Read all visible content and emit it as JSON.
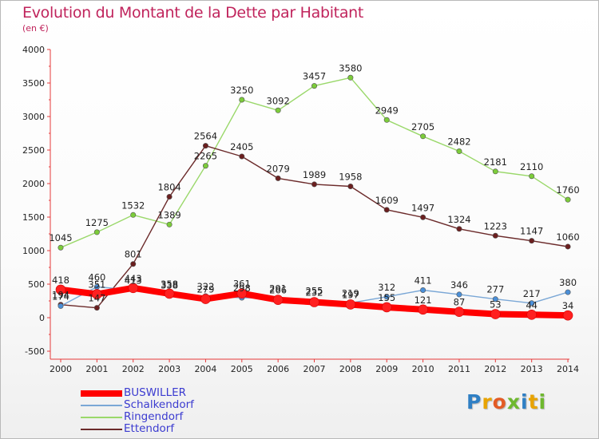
{
  "header": {
    "title": "Evolution du Montant de la Dette par Habitant",
    "subtitle": "(en €)"
  },
  "logo": {
    "text": "Proxiti",
    "letters": [
      "P",
      "r",
      "o",
      "x",
      "i",
      "t",
      "i"
    ],
    "colors": [
      "#2f7fc4",
      "#e8a300",
      "#e35b25",
      "#6eb82e",
      "#2f7fc4",
      "#e8a300",
      "#6eb82e"
    ]
  },
  "chart_data": {
    "type": "line",
    "x": [
      "2000",
      "2001",
      "2002",
      "2003",
      "2004",
      "2005",
      "2006",
      "2007",
      "2008",
      "2009",
      "2010",
      "2011",
      "2012",
      "2013",
      "2014"
    ],
    "ylim": [
      -500,
      4000
    ],
    "yticks": [
      "-500",
      "0",
      "500",
      "1000",
      "1500",
      "2000",
      "2500",
      "3000",
      "3500",
      "4000"
    ],
    "ytick_values": [
      -500,
      0,
      500,
      1000,
      1500,
      2000,
      2500,
      3000,
      3500,
      4000
    ],
    "grid": false,
    "legend_position": "bottom-left",
    "series": [
      {
        "name": "BUSWILLER",
        "color": "#ff0000",
        "marker": "#ff2020",
        "values": [
          418,
          351,
          443,
          358,
          279,
          361,
          266,
          232,
          197,
          155,
          121,
          87,
          53,
          44,
          34
        ],
        "labels": [
          "418",
          "351",
          "443",
          "358",
          "279",
          "361",
          "266",
          "232",
          "197",
          "155",
          "121",
          "87",
          "53",
          "44",
          "34"
        ]
      },
      {
        "name": "Schalkendorf",
        "color": "#7aa7d6",
        "marker": "#4a8fd8",
        "values": [
          174,
          460,
          413,
          338,
          322,
          298,
          291,
          255,
          219,
          312,
          411,
          346,
          277,
          217,
          380
        ],
        "labels": [
          "174",
          "460",
          "413",
          "338",
          "322",
          "298",
          "291",
          "255",
          "219",
          "312",
          "411",
          "346",
          "277",
          "217",
          "380"
        ]
      },
      {
        "name": "Ringendorf",
        "color": "#9ad86a",
        "marker": "#7ccc3a",
        "values": [
          1045,
          1275,
          1532,
          1389,
          2265,
          3250,
          3092,
          3457,
          3580,
          2949,
          2705,
          2482,
          2181,
          2110,
          1760
        ],
        "labels": [
          "1045",
          "1275",
          "1532",
          "1389",
          "2265",
          "3250",
          "3092",
          "3457",
          "3580",
          "2949",
          "2705",
          "2482",
          "2181",
          "2110",
          "1760"
        ]
      },
      {
        "name": "Ettendorf",
        "color": "#6b2a2a",
        "marker": "#6b1f1f",
        "values": [
          194,
          147,
          801,
          1804,
          2564,
          2405,
          2079,
          1989,
          1958,
          1609,
          1497,
          1324,
          1223,
          1147,
          1060
        ],
        "labels": [
          "194",
          "147",
          "801",
          "1804",
          "2564",
          "2405",
          "2079",
          "1989",
          "1958",
          "1609",
          "1497",
          "1324",
          "1223",
          "1147",
          "1060"
        ]
      }
    ]
  }
}
